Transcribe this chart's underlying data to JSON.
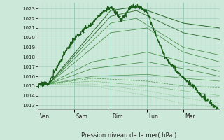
{
  "title": "",
  "xlabel": "Pression niveau de la mer( hPa )",
  "ylabel": "",
  "bg_color": "#cce8d8",
  "grid_color_major": "#99ccbb",
  "grid_color_minor": "#bbddd0",
  "line_color_dark": "#1a5c1a",
  "line_color_mid": "#2a7a2a",
  "line_color_light": "#4aaa4a",
  "ylim_min": 1013,
  "ylim_max": 1023.5,
  "yticks": [
    1013,
    1014,
    1015,
    1016,
    1017,
    1018,
    1019,
    1020,
    1021,
    1022,
    1023
  ],
  "xtick_labels": [
    "Ven",
    "Sam",
    "Dim",
    "Lun",
    "Mar"
  ],
  "n_hours": 120,
  "n_days": 5,
  "conv_hour": 7,
  "conv_val": 1015.2,
  "figsize": [
    3.2,
    2.0
  ],
  "dpi": 100
}
